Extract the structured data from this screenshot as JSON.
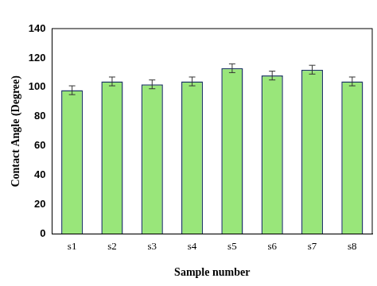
{
  "chart_data": {
    "type": "bar",
    "x_label": "Sample number",
    "y_label": "Contact Angle (Degree)",
    "categories": [
      "s1",
      "s2",
      "s3",
      "s4",
      "s5",
      "s6",
      "s7",
      "s8"
    ],
    "values": [
      98,
      104,
      102,
      104,
      113,
      108,
      112,
      104
    ],
    "errors": [
      3,
      3,
      3,
      3,
      3,
      3,
      3,
      3
    ],
    "color": "#99e67a",
    "ylim": [
      0,
      140
    ],
    "yticks": [
      0,
      20,
      40,
      60,
      80,
      100,
      120,
      140
    ],
    "grid": false
  }
}
